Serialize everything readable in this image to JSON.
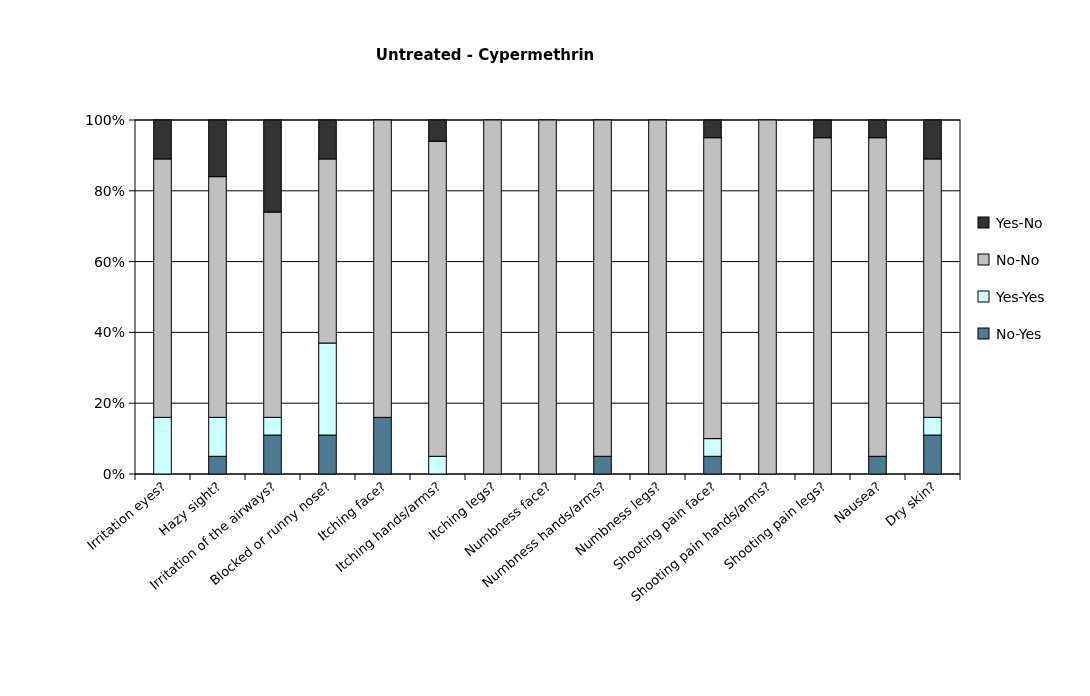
{
  "chart_data": {
    "type": "bar",
    "title": "Untreated - Cypermethrin",
    "stacked": true,
    "categories": [
      "Irritation eyes?",
      "Hazy sight?",
      "Irritation of the airways?",
      "Blocked or runny nose?",
      "Itching face?",
      "Itching hands/arms?",
      "Itching legs?",
      "Numbness face?",
      "Numbness hands/arms?",
      "Numbness legs?",
      "Shooting pain face?",
      "Shooting pain hands/arms?",
      "Shooting pain legs?",
      "Nausea?",
      "Dry skin?"
    ],
    "series": [
      {
        "name": "No-Yes",
        "color": "#4f7a93",
        "values": [
          0,
          5,
          11,
          11,
          16,
          0,
          0,
          0,
          5,
          0,
          5,
          0,
          0,
          5,
          11
        ]
      },
      {
        "name": "Yes-Yes",
        "color": "#ccffff",
        "values": [
          16,
          11,
          5,
          26,
          0,
          5,
          0,
          0,
          0,
          0,
          5,
          0,
          0,
          0,
          5
        ]
      },
      {
        "name": "No-No",
        "color": "#c0c0c0",
        "values": [
          73,
          68,
          58,
          52,
          84,
          89,
          100,
          100,
          95,
          100,
          85,
          100,
          95,
          90,
          73
        ]
      },
      {
        "name": "Yes-No",
        "color": "#333333",
        "values": [
          11,
          16,
          26,
          11,
          0,
          6,
          0,
          0,
          0,
          0,
          5,
          0,
          5,
          5,
          11
        ]
      }
    ],
    "ylim": [
      0,
      100
    ],
    "yticks": [
      {
        "value": 0,
        "label": "0%"
      },
      {
        "value": 20,
        "label": "20%"
      },
      {
        "value": 40,
        "label": "40%"
      },
      {
        "value": 60,
        "label": "60%"
      },
      {
        "value": 80,
        "label": "80%"
      },
      {
        "value": 100,
        "label": "100%"
      }
    ],
    "grid": "y",
    "legend": "right"
  }
}
